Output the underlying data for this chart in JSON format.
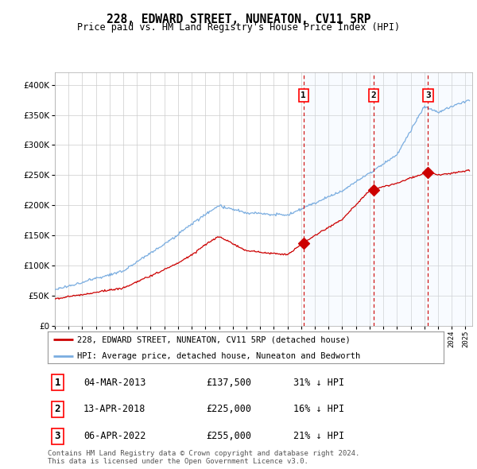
{
  "title": "228, EDWARD STREET, NUNEATON, CV11 5RP",
  "subtitle": "Price paid vs. HM Land Registry's House Price Index (HPI)",
  "transactions": [
    {
      "num": 1,
      "date": "04-MAR-2013",
      "price": 137500,
      "pct": "31%",
      "dir": "↓",
      "year": 2013.17
    },
    {
      "num": 2,
      "date": "13-APR-2018",
      "price": 225000,
      "pct": "16%",
      "dir": "↓",
      "year": 2018.28
    },
    {
      "num": 3,
      "date": "06-APR-2022",
      "price": 255000,
      "pct": "21%",
      "dir": "↓",
      "year": 2022.27
    }
  ],
  "legend_line1": "228, EDWARD STREET, NUNEATON, CV11 5RP (detached house)",
  "legend_line2": "HPI: Average price, detached house, Nuneaton and Bedworth",
  "footer": "Contains HM Land Registry data © Crown copyright and database right 2024.\nThis data is licensed under the Open Government Licence v3.0.",
  "hpi_color": "#7aade0",
  "price_color": "#cc0000",
  "vline_color": "#cc0000",
  "shade_color": "#ddeeff",
  "ylim": [
    0,
    420000
  ],
  "yticks": [
    0,
    50000,
    100000,
    150000,
    200000,
    250000,
    300000,
    350000,
    400000
  ],
  "xmin": 1995,
  "xmax": 2025.5,
  "background": "#ffffff"
}
